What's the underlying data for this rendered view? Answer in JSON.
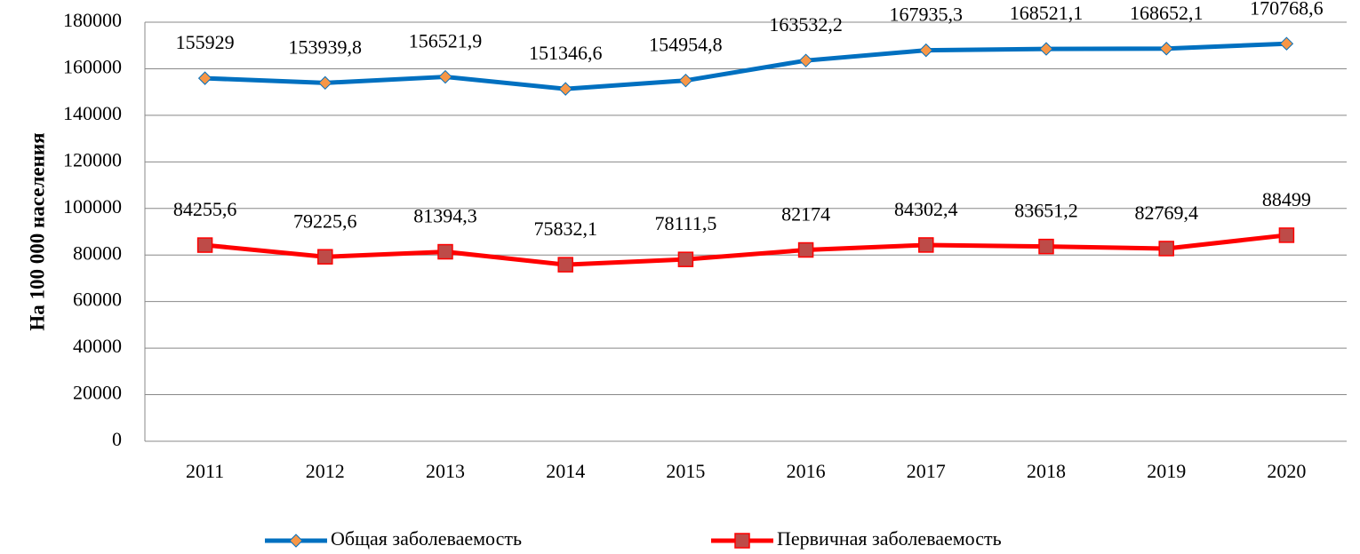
{
  "chart_data": {
    "type": "line",
    "y_label": "На 100 000 населения",
    "categories": [
      "2011",
      "2012",
      "2013",
      "2014",
      "2015",
      "2016",
      "2017",
      "2018",
      "2019",
      "2020"
    ],
    "series": [
      {
        "name": "Общая заболеваемость",
        "color": "#0070c0",
        "marker": "diamond",
        "marker_color": "#f79646",
        "values": [
          155929,
          153939.8,
          156521.9,
          151346.6,
          154954.8,
          163532.2,
          167935.3,
          168521.1,
          168652.1,
          170768.6
        ],
        "value_labels": [
          "155929",
          "153939,8",
          "156521,9",
          "151346,6",
          "154954,8",
          "163532,2",
          "167935,3",
          "168521,1",
          "168652,1",
          "170768,6"
        ]
      },
      {
        "name": "Первичная заболеваемость",
        "color": "#ff0000",
        "marker": "square",
        "marker_color": "#be4b48",
        "values": [
          84255.6,
          79225.6,
          81394.3,
          75832.1,
          78111.5,
          82174,
          84302.4,
          83651.2,
          82769.4,
          88499
        ],
        "value_labels": [
          "84255,6",
          "79225,6",
          "81394,3",
          "75832,1",
          "78111,5",
          "82174",
          "84302,4",
          "83651,2",
          "82769,4",
          "88499"
        ]
      }
    ],
    "ylim": [
      0,
      180000
    ],
    "yticks": [
      0,
      20000,
      40000,
      60000,
      80000,
      100000,
      120000,
      140000,
      160000,
      180000
    ],
    "grid": true,
    "legend": "bottom"
  }
}
